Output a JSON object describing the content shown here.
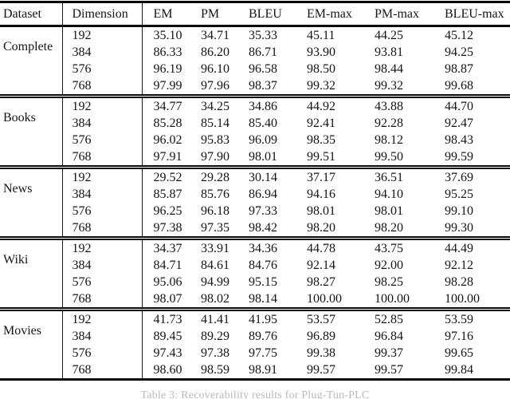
{
  "table": {
    "columns": [
      "Dataset",
      "Dimension",
      "EM",
      "PM",
      "BLEU",
      "EM-max",
      "PM-max",
      "BLEU-max"
    ],
    "groups": [
      {
        "dataset": "Complete",
        "rows": [
          {
            "dimension": "192",
            "values": [
              "35.10",
              "34.71",
              "35.33",
              "45.11",
              "44.25",
              "45.12"
            ]
          },
          {
            "dimension": "384",
            "values": [
              "86.33",
              "86.20",
              "86.71",
              "93.90",
              "93.81",
              "94.25"
            ]
          },
          {
            "dimension": "576",
            "values": [
              "96.19",
              "96.10",
              "96.58",
              "98.50",
              "98.44",
              "98.87"
            ]
          },
          {
            "dimension": "768",
            "values": [
              "97.99",
              "97.96",
              "98.37",
              "99.32",
              "99.32",
              "99.68"
            ]
          }
        ]
      },
      {
        "dataset": "Books",
        "rows": [
          {
            "dimension": "192",
            "values": [
              "34.77",
              "34.25",
              "34.86",
              "44.92",
              "43.88",
              "44.70"
            ]
          },
          {
            "dimension": "384",
            "values": [
              "85.28",
              "85.14",
              "85.40",
              "92.41",
              "92.28",
              "92.47"
            ]
          },
          {
            "dimension": "576",
            "values": [
              "96.02",
              "95.83",
              "96.09",
              "98.35",
              "98.12",
              "98.43"
            ]
          },
          {
            "dimension": "768",
            "values": [
              "97.91",
              "97.90",
              "98.01",
              "99.51",
              "99.50",
              "99.59"
            ]
          }
        ]
      },
      {
        "dataset": "News",
        "rows": [
          {
            "dimension": "192",
            "values": [
              "29.52",
              "29.28",
              "30.14",
              "37.17",
              "36.51",
              "37.69"
            ]
          },
          {
            "dimension": "384",
            "values": [
              "85.87",
              "85.76",
              "86.94",
              "94.16",
              "94.10",
              "95.25"
            ]
          },
          {
            "dimension": "576",
            "values": [
              "96.25",
              "96.18",
              "97.33",
              "98.01",
              "98.01",
              "99.10"
            ]
          },
          {
            "dimension": "768",
            "values": [
              "97.38",
              "97.35",
              "98.42",
              "98.20",
              "98.20",
              "99.30"
            ]
          }
        ]
      },
      {
        "dataset": "Wiki",
        "rows": [
          {
            "dimension": "192",
            "values": [
              "34.37",
              "33.91",
              "34.36",
              "44.78",
              "43.75",
              "44.49"
            ]
          },
          {
            "dimension": "384",
            "values": [
              "84.71",
              "84.61",
              "84.76",
              "92.14",
              "92.00",
              "92.12"
            ]
          },
          {
            "dimension": "576",
            "values": [
              "95.06",
              "94.99",
              "95.15",
              "98.27",
              "98.25",
              "98.28"
            ]
          },
          {
            "dimension": "768",
            "values": [
              "98.07",
              "98.02",
              "98.14",
              "100.00",
              "100.00",
              "100.00"
            ]
          }
        ]
      },
      {
        "dataset": "Movies",
        "rows": [
          {
            "dimension": "192",
            "values": [
              "41.73",
              "41.41",
              "41.95",
              "53.57",
              "52.85",
              "53.59"
            ]
          },
          {
            "dimension": "384",
            "values": [
              "89.45",
              "89.29",
              "89.76",
              "96.89",
              "96.84",
              "97.16"
            ]
          },
          {
            "dimension": "576",
            "values": [
              "97.43",
              "97.38",
              "97.75",
              "99.38",
              "99.37",
              "99.65"
            ]
          },
          {
            "dimension": "768",
            "values": [
              "98.60",
              "98.59",
              "98.91",
              "99.57",
              "99.57",
              "99.84"
            ]
          }
        ]
      }
    ]
  },
  "caption": {
    "text": "Table 3: Recoverability results for Plug-Tun-PLC"
  }
}
